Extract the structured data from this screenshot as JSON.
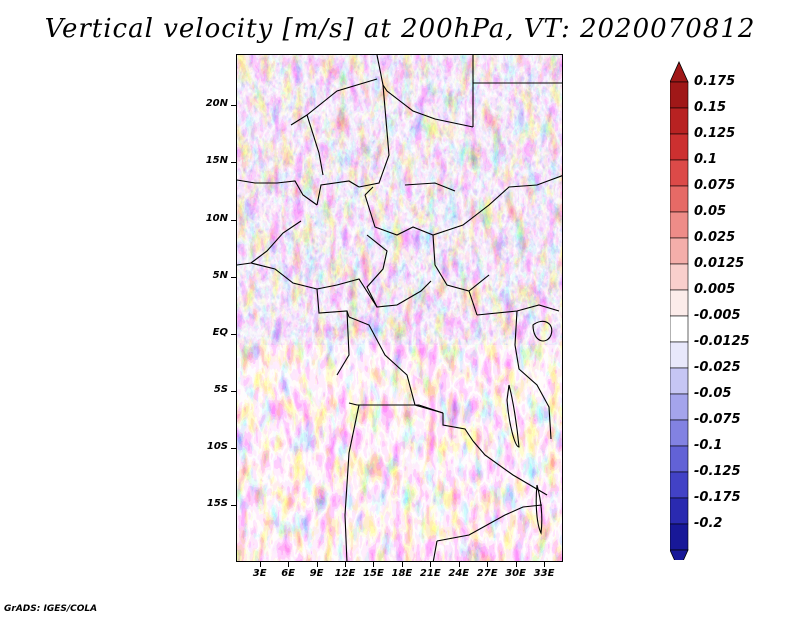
{
  "title": "Vertical velocity [m/s] at 200hPa, VT: 2020070812",
  "footer": "GrADS: IGES/COLA",
  "map": {
    "region": "Central Africa",
    "field": "Vertical velocity",
    "level": "200hPa",
    "valid_time": "2020070812",
    "units": "m/s"
  },
  "axes": {
    "lat_labels": [
      "20N",
      "15N",
      "10N",
      "5N",
      "EQ",
      "5S",
      "10S",
      "15S"
    ],
    "lat_values": [
      20,
      15,
      10,
      5,
      0,
      -5,
      -10,
      -15
    ],
    "lon_labels": [
      "3E",
      "6E",
      "9E",
      "12E",
      "15E",
      "18E",
      "21E",
      "24E",
      "27E",
      "30E",
      "33E"
    ],
    "lon_values": [
      3,
      6,
      9,
      12,
      15,
      18,
      21,
      24,
      27,
      30,
      33
    ],
    "lat_range": [
      -20,
      24.5
    ],
    "lon_range": [
      0.5,
      35
    ]
  },
  "colorbar": {
    "labels": [
      "0.175",
      "0.15",
      "0.125",
      "0.1",
      "0.075",
      "0.05",
      "0.025",
      "0.0125",
      "0.005",
      "-0.005",
      "-0.0125",
      "-0.025",
      "-0.05",
      "-0.075",
      "-0.1",
      "-0.125",
      "-0.175",
      "-0.2"
    ],
    "colors": [
      "#a01818",
      "#b82222",
      "#cc3030",
      "#dc4a48",
      "#e66a66",
      "#ee8c88",
      "#f4aeaa",
      "#f9cfcc",
      "#fcecea",
      "#ffffff",
      "#e8e8fb",
      "#c6c6f4",
      "#a4a4ec",
      "#8282e2",
      "#6262d6",
      "#4242c6",
      "#2a2ab0",
      "#181898"
    ],
    "top_color": "#a01818",
    "bottom_color": "#181898"
  }
}
